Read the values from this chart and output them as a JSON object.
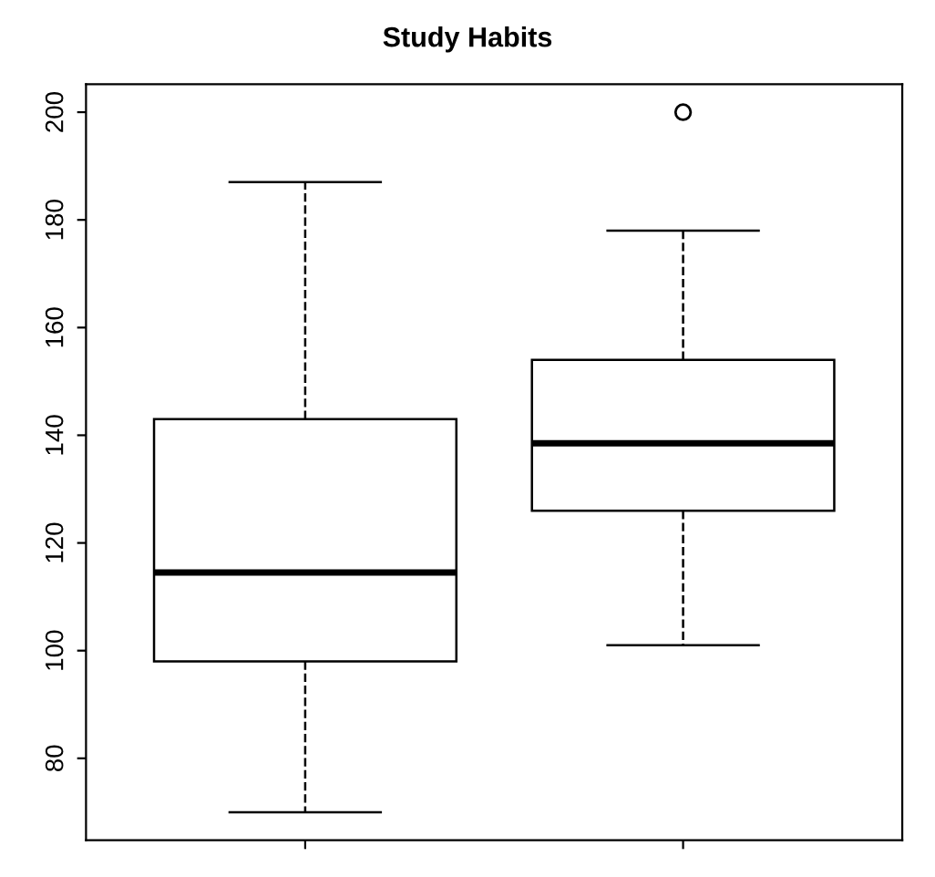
{
  "chart_data": {
    "type": "box",
    "title": "Study Habits",
    "categories": [
      null,
      null
    ],
    "boxes": [
      {
        "low": 70,
        "q1": 98,
        "median": 114.5,
        "q3": 143,
        "high": 187
      },
      {
        "low": 101,
        "q1": 126,
        "median": 138.5,
        "q3": 154,
        "high": 178,
        "outliers": [
          200
        ]
      }
    ],
    "ylim": [
      64.8,
      205.2
    ],
    "yticks": [
      80,
      100,
      120,
      140,
      160,
      180,
      200
    ],
    "grid": false,
    "line_style": "dashed",
    "marker": "circle"
  }
}
